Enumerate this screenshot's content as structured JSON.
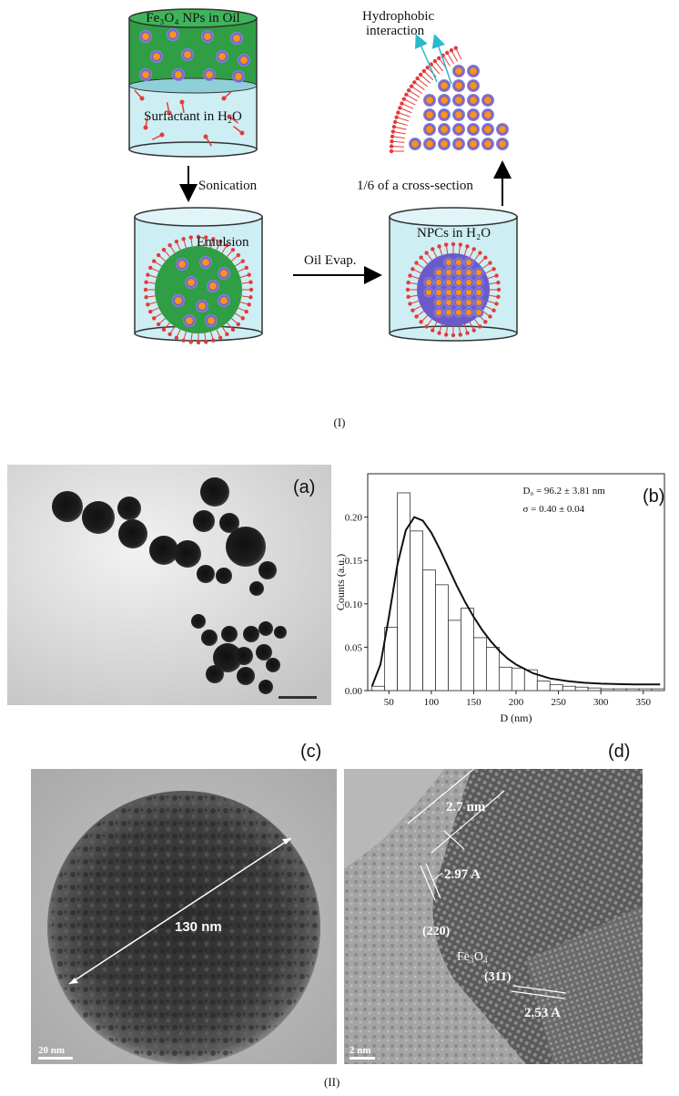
{
  "schematic": {
    "top_left_title": "Fe₃O₄ NPs in Oil",
    "top_left_sub": "Surfactant in H₂O",
    "step_down": "Sonication",
    "emulsion": "Emulsion",
    "oil_evap": "Oil Evap.",
    "npcs": "NPCs in H₂O",
    "cross_section": "1/6 of a cross-section",
    "hydrophobic": "Hydrophobic",
    "interaction": "interaction",
    "label": "(I)"
  },
  "panels": {
    "a": "(a)",
    "b": "(b)",
    "c": "(c)",
    "d": "(d)",
    "label": "(II)"
  },
  "tem_c": {
    "diameter": "130 nm",
    "scale": "20 nm"
  },
  "hrtem_d": {
    "shell": "2.7 nm",
    "d220": "2.97 A",
    "plane220": "(220)",
    "phase": "Fe₃O₄",
    "plane311": "(311)",
    "d311": "2.53 A",
    "scale": "2 nm"
  },
  "chart_data": {
    "type": "bar",
    "title": "",
    "xlabel": "D (nm)",
    "ylabel": "Counts (a.u.)",
    "xlim": [
      25,
      375
    ],
    "ylim": [
      0,
      0.25
    ],
    "xticks": [
      50,
      100,
      150,
      200,
      250,
      300,
      350
    ],
    "yticks": [
      0.0,
      0.05,
      0.1,
      0.15,
      0.2
    ],
    "bin_width": 15,
    "bins": [
      {
        "x": 37.5,
        "y": 0.005
      },
      {
        "x": 52.5,
        "y": 0.073
      },
      {
        "x": 67.5,
        "y": 0.228
      },
      {
        "x": 82.5,
        "y": 0.184
      },
      {
        "x": 97.5,
        "y": 0.139
      },
      {
        "x": 112.5,
        "y": 0.122
      },
      {
        "x": 127.5,
        "y": 0.081
      },
      {
        "x": 142.5,
        "y": 0.095
      },
      {
        "x": 157.5,
        "y": 0.061
      },
      {
        "x": 172.5,
        "y": 0.05
      },
      {
        "x": 187.5,
        "y": 0.027
      },
      {
        "x": 202.5,
        "y": 0.026
      },
      {
        "x": 217.5,
        "y": 0.024
      },
      {
        "x": 232.5,
        "y": 0.011
      },
      {
        "x": 247.5,
        "y": 0.007
      },
      {
        "x": 262.5,
        "y": 0.005
      },
      {
        "x": 277.5,
        "y": 0.004
      },
      {
        "x": 292.5,
        "y": 0.003
      },
      {
        "x": 307.5,
        "y": 0.002
      },
      {
        "x": 322.5,
        "y": 0.002
      },
      {
        "x": 337.5,
        "y": 0.002
      },
      {
        "x": 352.5,
        "y": 0.002
      },
      {
        "x": 367.5,
        "y": 0.002
      }
    ],
    "fit": {
      "type": "lognormal",
      "x": [
        30,
        40,
        50,
        60,
        70,
        80,
        90,
        100,
        110,
        120,
        130,
        140,
        150,
        160,
        170,
        180,
        190,
        200,
        220,
        240,
        260,
        280,
        300,
        320,
        340,
        360,
        370
      ],
      "y": [
        0.005,
        0.03,
        0.085,
        0.145,
        0.185,
        0.2,
        0.196,
        0.182,
        0.163,
        0.142,
        0.121,
        0.102,
        0.085,
        0.07,
        0.057,
        0.046,
        0.037,
        0.03,
        0.02,
        0.014,
        0.011,
        0.009,
        0.008,
        0.0075,
        0.007,
        0.007,
        0.007
      ]
    },
    "annotations": [
      "D₀ = 96.2 ± 3.81 nm",
      "σ = 0.40 ± 0.04"
    ]
  }
}
